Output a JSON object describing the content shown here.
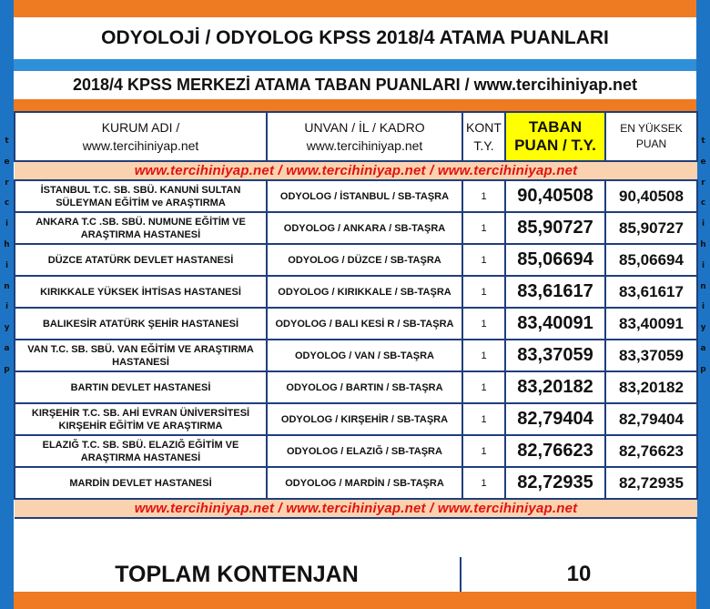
{
  "title": "ODYOLOJİ / ODYOLOG KPSS 2018/4 ATAMA PUANLARI",
  "subtitle": "2018/4 KPSS MERKEZİ ATAMA TABAN PUANLARI / www.tercihiniyap.net",
  "side_letters": [
    "t",
    "e",
    "r",
    "c",
    "i",
    "h",
    "i",
    "n",
    "i",
    "y",
    "a",
    "p"
  ],
  "headers": {
    "kurum_l1": "KURUM ADI /",
    "kurum_l2": "www.tercihiniyap.net",
    "unvan_l1": "UNVAN / İL / KADRO",
    "unvan_l2": "www.tercihiniyap.net",
    "kont_l1": "KONT",
    "kont_l2": "T.Y.",
    "taban_l1": "TABAN",
    "taban_l2": "PUAN / T.Y.",
    "enyuksek_l1": "EN YÜKSEK",
    "enyuksek_l2": "PUAN"
  },
  "web_banner": "www.tercihiniyap.net / www.tercihiniyap.net / www.tercihiniyap.net",
  "rows": [
    {
      "kurum": "İSTANBUL T.C. SB. SBÜ. KANUNİ SULTAN SÜLEYMAN EĞİTİM ve ARAŞTIRMA",
      "unvan": "ODYOLOG / İSTANBUL / SB-TAŞRA",
      "kont": "1",
      "taban": "90,40508",
      "enyuksek": "90,40508"
    },
    {
      "kurum": "ANKARA T.C .SB. SBÜ. NUMUNE EĞİTİM VE ARAŞTIRMA HASTANESİ",
      "unvan": "ODYOLOG / ANKARA / SB-TAŞRA",
      "kont": "1",
      "taban": "85,90727",
      "enyuksek": "85,90727"
    },
    {
      "kurum": "DÜZCE ATATÜRK DEVLET HASTANESİ",
      "unvan": "ODYOLOG / DÜZCE / SB-TAŞRA",
      "kont": "1",
      "taban": "85,06694",
      "enyuksek": "85,06694"
    },
    {
      "kurum": "KIRIKKALE YÜKSEK İHTİSAS HASTANESİ",
      "unvan": "ODYOLOG / KIRIKKALE / SB-TAŞRA",
      "kont": "1",
      "taban": "83,61617",
      "enyuksek": "83,61617"
    },
    {
      "kurum": "BALIKESİR ATATÜRK ŞEHİR HASTANESİ",
      "unvan": "ODYOLOG / BALI KESİ R / SB-TAŞRA",
      "kont": "1",
      "taban": "83,40091",
      "enyuksek": "83,40091"
    },
    {
      "kurum": "VAN T.C. SB. SBÜ. VAN EĞİTİM VE ARAŞTIRMA HASTANESİ",
      "unvan": "ODYOLOG / VAN / SB-TAŞRA",
      "kont": "1",
      "taban": "83,37059",
      "enyuksek": "83,37059"
    },
    {
      "kurum": "BARTIN DEVLET HASTANESİ",
      "unvan": "ODYOLOG / BARTIN / SB-TAŞRA",
      "kont": "1",
      "taban": "83,20182",
      "enyuksek": "83,20182"
    },
    {
      "kurum": "KIRŞEHİR T.C. SB. AHİ EVRAN ÜNİVERSİTESİ KIRŞEHİR EĞİTİM VE ARAŞTIRMA",
      "unvan": "ODYOLOG / KIRŞEHİR / SB-TAŞRA",
      "kont": "1",
      "taban": "82,79404",
      "enyuksek": "82,79404"
    },
    {
      "kurum": "ELAZIĞ T.C. SB. SBÜ. ELAZIĞ EĞİTİM VE ARAŞTIRMA HASTANESİ",
      "unvan": "ODYOLOG / ELAZIĞ / SB-TAŞRA",
      "kont": "1",
      "taban": "82,76623",
      "enyuksek": "82,76623"
    },
    {
      "kurum": "MARDİN DEVLET HASTANESİ",
      "unvan": "ODYOLOG / MARDİN / SB-TAŞRA",
      "kont": "1",
      "taban": "82,72935",
      "enyuksek": "82,72935"
    }
  ],
  "total_label": "TOPLAM KONTENJAN",
  "total_value": "10",
  "colors": {
    "side": "#1e74c4",
    "orange": "#ee7a22",
    "header_highlight": "#ffff00",
    "web_text": "#e0140c",
    "web_bg": "#fbd2b0"
  }
}
